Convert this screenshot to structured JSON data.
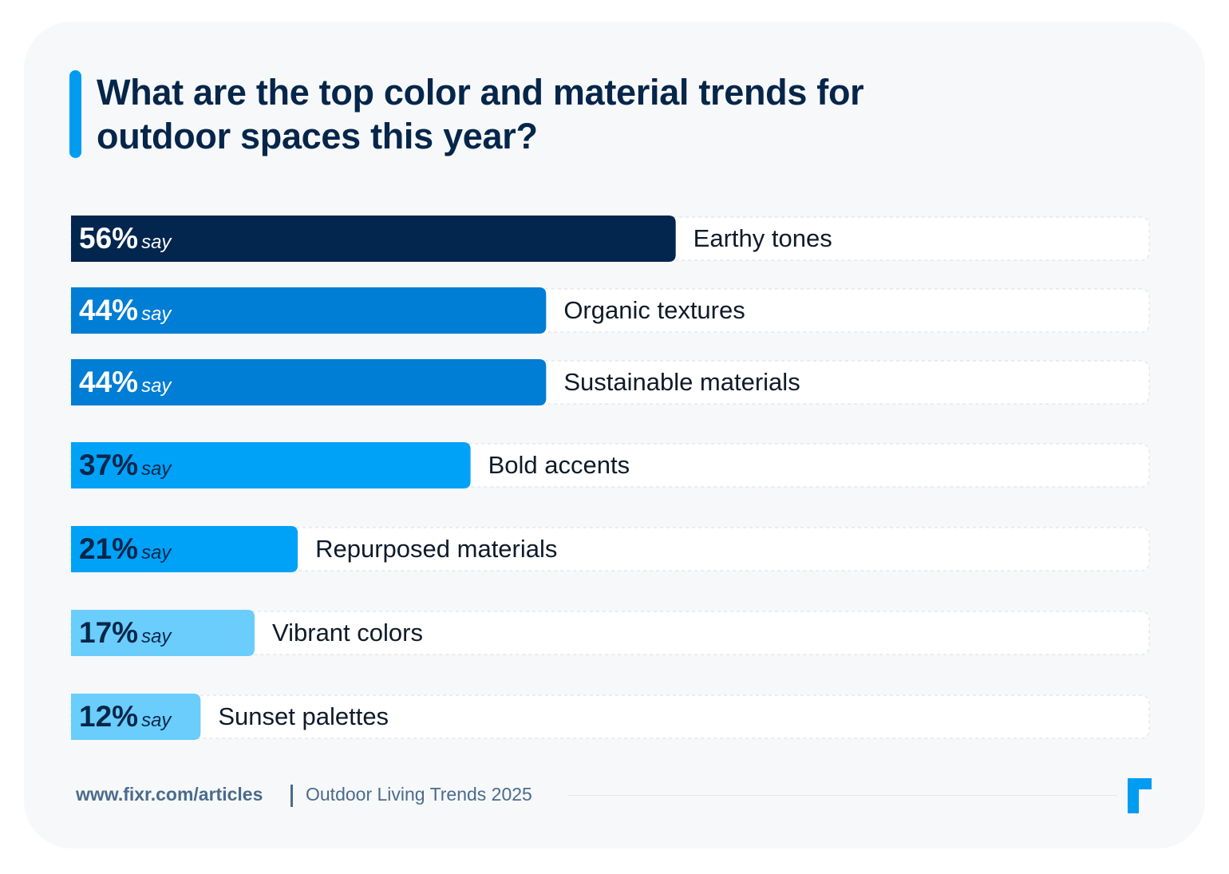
{
  "title": {
    "line1": "What are the top color and material trends for",
    "line2": "outdoor spaces this year?"
  },
  "chart_data": {
    "type": "bar",
    "orientation": "horizontal",
    "title": "What are the top color and material trends for outdoor spaces this year?",
    "value_suffix": "say",
    "unit": "%",
    "xlim": [
      0,
      100
    ],
    "categories": [
      "Earthy tones",
      "Organic textures",
      "Sustainable materials",
      "Bold accents",
      "Repurposed materials",
      "Vibrant colors",
      "Sunset palettes"
    ],
    "values": [
      56,
      44,
      44,
      37,
      21,
      17,
      12
    ],
    "bar_colors": [
      "#03264e",
      "#007dd4",
      "#007dd4",
      "#00a2f8",
      "#00a2f8",
      "#6acdfb",
      "#6acdfb"
    ],
    "value_text_colors": [
      "#ffffff",
      "#ffffff",
      "#ffffff",
      "#05264a",
      "#05264a",
      "#05264a",
      "#05264a"
    ]
  },
  "footer": {
    "url": "www.fixr.com/articles",
    "label": "Outdoor Living Trends 2025"
  },
  "colors": {
    "accent": "#009cf2",
    "title": "#05264a",
    "footer_text": "#4a6b8c"
  },
  "logo": {
    "icon": "fixr-logo-icon"
  }
}
